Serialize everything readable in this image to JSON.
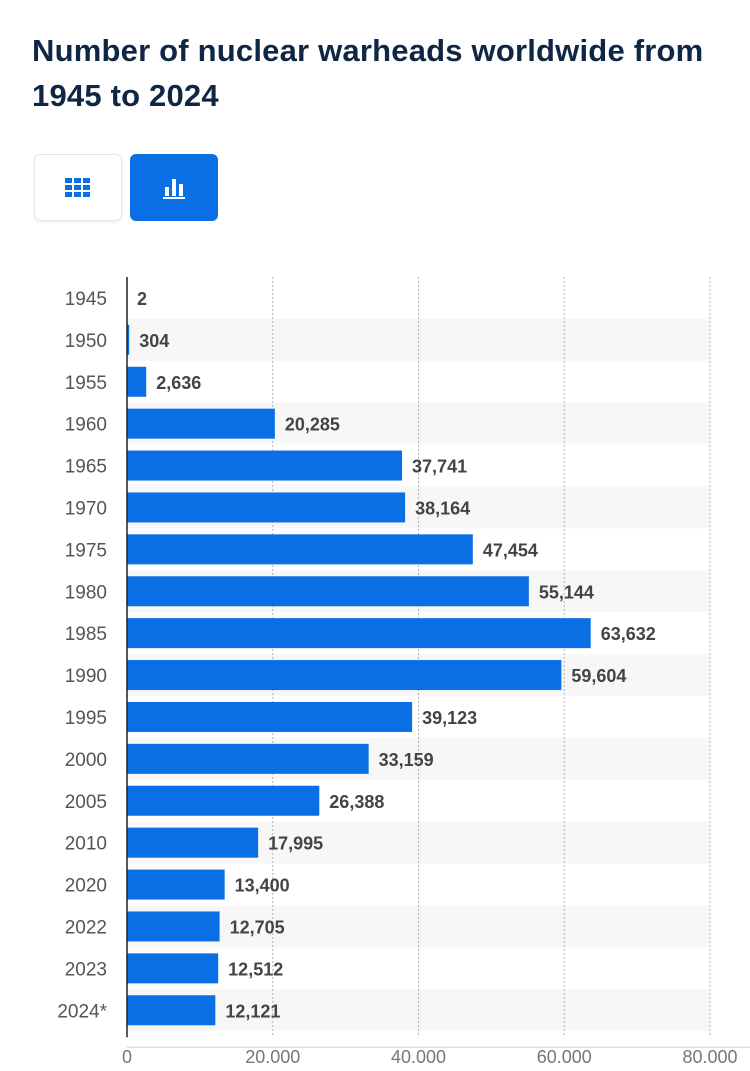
{
  "title": "Number of nuclear warheads worldwide from 1945 to 2024",
  "toolbar": {
    "table_view": {
      "icon": "grid-table-icon",
      "selected": false
    },
    "chart_view": {
      "icon": "bar-chart-icon",
      "selected": true
    }
  },
  "colors": {
    "bar": "#0a6fe4",
    "title": "#0f2744",
    "active_button": "#0a6fe4",
    "stripe": "#f7f7f7",
    "label": "#555555",
    "value": "#444444"
  },
  "chart_data": {
    "type": "bar",
    "orientation": "horizontal",
    "title": "Number of nuclear warheads worldwide from 1945 to 2024",
    "categories": [
      "1945",
      "1950",
      "1955",
      "1960",
      "1965",
      "1970",
      "1975",
      "1980",
      "1985",
      "1990",
      "1995",
      "2000",
      "2005",
      "2010",
      "2020",
      "2022",
      "2023",
      "2024*"
    ],
    "values": [
      2,
      304,
      2636,
      20285,
      37741,
      38164,
      47454,
      55144,
      63632,
      59604,
      39123,
      33159,
      26388,
      17995,
      13400,
      12705,
      12512,
      12121
    ],
    "value_labels": [
      "2",
      "304",
      "2,636",
      "20,285",
      "37,741",
      "38,164",
      "47,454",
      "55,144",
      "63,632",
      "59,604",
      "39,123",
      "33,159",
      "26,388",
      "17,995",
      "13,400",
      "12,705",
      "12,512",
      "12,121"
    ],
    "xlim": [
      0,
      80000
    ],
    "xticks": [
      0,
      20000,
      40000,
      60000,
      80000
    ],
    "xtick_labels": [
      "0",
      "20.000",
      "40.000",
      "60.000",
      "80.000"
    ],
    "xlabel": "",
    "ylabel": "",
    "grid": true
  }
}
